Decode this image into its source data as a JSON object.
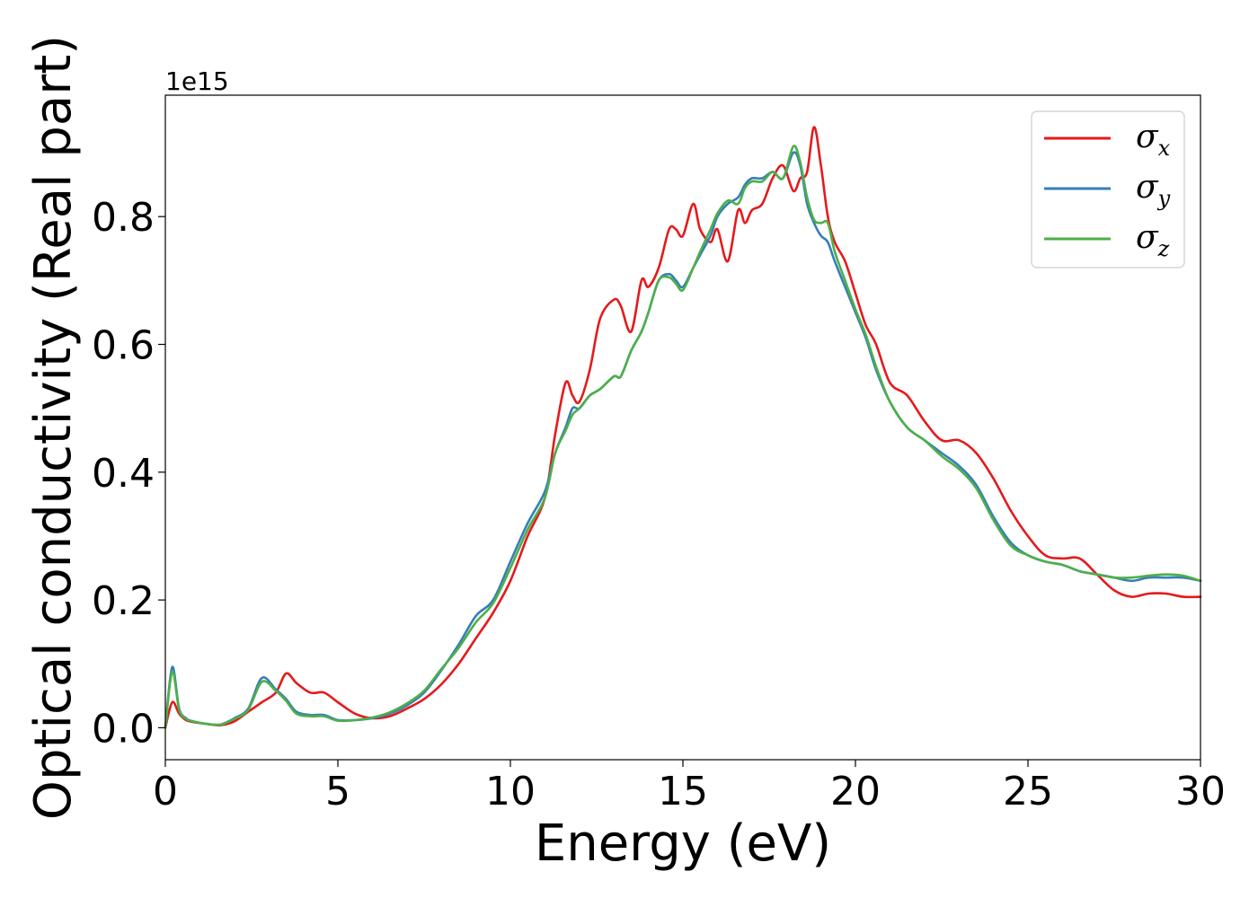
{
  "chart_data": {
    "type": "line",
    "xlabel": "Energy (eV)",
    "ylabel": "Optical conductivity (Real part)",
    "y_offset_label": "1e15",
    "xlim": [
      0,
      30
    ],
    "ylim": [
      -0.05,
      0.99
    ],
    "grid": false,
    "legend_position": "top-right",
    "x_ticks": [
      0,
      5,
      10,
      15,
      20,
      25,
      30
    ],
    "x_tick_labels": [
      "0",
      "5",
      "10",
      "15",
      "20",
      "25",
      "30"
    ],
    "y_ticks": [
      0.0,
      0.2,
      0.4,
      0.6,
      0.8
    ],
    "y_tick_labels": [
      "0.0",
      "0.2",
      "0.4",
      "0.6",
      "0.8"
    ],
    "series": [
      {
        "name": "σx",
        "symbol": "σ",
        "subscript": "x",
        "color": "#e41a1c",
        "x": [
          0,
          0.2,
          0.4,
          0.6,
          0.8,
          1.2,
          1.6,
          2.0,
          2.4,
          2.8,
          3.2,
          3.5,
          3.8,
          4.2,
          4.6,
          5.0,
          5.5,
          6.0,
          6.5,
          7.0,
          7.5,
          8.0,
          8.5,
          9.0,
          9.5,
          10.0,
          10.5,
          11.0,
          11.3,
          11.6,
          11.8,
          12.0,
          12.3,
          12.6,
          13.0,
          13.2,
          13.5,
          13.8,
          14.0,
          14.3,
          14.6,
          14.8,
          15.0,
          15.3,
          15.5,
          15.8,
          16.0,
          16.3,
          16.6,
          16.8,
          17.0,
          17.3,
          17.6,
          17.9,
          18.2,
          18.4,
          18.6,
          18.8,
          19.0,
          19.2,
          19.4,
          19.7,
          20.0,
          20.3,
          20.6,
          21.0,
          21.5,
          22.0,
          22.5,
          23.0,
          23.5,
          24.0,
          24.5,
          25.0,
          25.5,
          26.0,
          26.5,
          27.0,
          27.5,
          28.0,
          28.5,
          29.0,
          29.5,
          30.0
        ],
        "values": [
          0.0,
          0.04,
          0.022,
          0.012,
          0.009,
          0.006,
          0.004,
          0.01,
          0.025,
          0.04,
          0.055,
          0.085,
          0.07,
          0.055,
          0.055,
          0.04,
          0.022,
          0.015,
          0.018,
          0.03,
          0.045,
          0.068,
          0.1,
          0.14,
          0.18,
          0.23,
          0.3,
          0.36,
          0.46,
          0.54,
          0.52,
          0.51,
          0.56,
          0.64,
          0.67,
          0.66,
          0.62,
          0.7,
          0.69,
          0.72,
          0.78,
          0.78,
          0.77,
          0.82,
          0.78,
          0.76,
          0.78,
          0.73,
          0.81,
          0.79,
          0.81,
          0.82,
          0.86,
          0.88,
          0.84,
          0.86,
          0.87,
          0.94,
          0.88,
          0.8,
          0.76,
          0.73,
          0.68,
          0.63,
          0.6,
          0.54,
          0.52,
          0.48,
          0.45,
          0.45,
          0.43,
          0.39,
          0.34,
          0.3,
          0.27,
          0.265,
          0.265,
          0.24,
          0.215,
          0.205,
          0.21,
          0.21,
          0.205,
          0.205
        ]
      },
      {
        "name": "σy",
        "symbol": "σ",
        "subscript": "y",
        "color": "#377eb8",
        "x": [
          0,
          0.2,
          0.4,
          0.6,
          0.8,
          1.2,
          1.6,
          2.0,
          2.4,
          2.8,
          3.2,
          3.5,
          3.8,
          4.2,
          4.6,
          5.0,
          5.5,
          6.0,
          6.5,
          7.0,
          7.5,
          8.0,
          8.5,
          9.0,
          9.5,
          10.0,
          10.5,
          11.0,
          11.3,
          11.6,
          11.8,
          12.0,
          12.3,
          12.6,
          13.0,
          13.2,
          13.5,
          13.8,
          14.0,
          14.3,
          14.6,
          14.8,
          15.0,
          15.3,
          15.5,
          15.8,
          16.0,
          16.3,
          16.6,
          16.8,
          17.0,
          17.3,
          17.6,
          17.9,
          18.2,
          18.4,
          18.6,
          18.8,
          19.0,
          19.2,
          19.4,
          19.7,
          20.0,
          20.3,
          20.6,
          21.0,
          21.5,
          22.0,
          22.5,
          23.0,
          23.5,
          24.0,
          24.5,
          25.0,
          25.5,
          26.0,
          26.5,
          27.0,
          27.5,
          28.0,
          28.5,
          29.0,
          29.5,
          30.0
        ],
        "values": [
          0.0,
          0.095,
          0.03,
          0.015,
          0.01,
          0.006,
          0.005,
          0.015,
          0.03,
          0.078,
          0.06,
          0.045,
          0.025,
          0.02,
          0.02,
          0.012,
          0.012,
          0.015,
          0.022,
          0.035,
          0.055,
          0.09,
          0.13,
          0.175,
          0.2,
          0.26,
          0.32,
          0.37,
          0.43,
          0.47,
          0.5,
          0.5,
          0.52,
          0.53,
          0.55,
          0.55,
          0.59,
          0.62,
          0.65,
          0.7,
          0.71,
          0.7,
          0.69,
          0.72,
          0.74,
          0.77,
          0.8,
          0.82,
          0.83,
          0.85,
          0.86,
          0.86,
          0.87,
          0.86,
          0.9,
          0.88,
          0.82,
          0.79,
          0.77,
          0.76,
          0.73,
          0.69,
          0.65,
          0.61,
          0.56,
          0.51,
          0.47,
          0.45,
          0.43,
          0.41,
          0.38,
          0.33,
          0.29,
          0.27,
          0.26,
          0.255,
          0.245,
          0.24,
          0.235,
          0.23,
          0.235,
          0.235,
          0.235,
          0.23
        ]
      },
      {
        "name": "σz",
        "symbol": "σ",
        "subscript": "z",
        "color": "#4daf4a",
        "x": [
          0,
          0.2,
          0.4,
          0.6,
          0.8,
          1.2,
          1.6,
          2.0,
          2.4,
          2.8,
          3.2,
          3.5,
          3.8,
          4.2,
          4.6,
          5.0,
          5.5,
          6.0,
          6.5,
          7.0,
          7.5,
          8.0,
          8.5,
          9.0,
          9.5,
          10.0,
          10.5,
          11.0,
          11.3,
          11.6,
          11.8,
          12.0,
          12.3,
          12.6,
          13.0,
          13.2,
          13.5,
          13.8,
          14.0,
          14.3,
          14.6,
          14.8,
          15.0,
          15.3,
          15.5,
          15.8,
          16.0,
          16.3,
          16.6,
          16.8,
          17.0,
          17.3,
          17.6,
          17.9,
          18.2,
          18.4,
          18.6,
          18.8,
          19.0,
          19.2,
          19.4,
          19.7,
          20.0,
          20.3,
          20.6,
          21.0,
          21.5,
          22.0,
          22.5,
          23.0,
          23.5,
          24.0,
          24.5,
          25.0,
          25.5,
          26.0,
          26.5,
          27.0,
          27.5,
          28.0,
          28.5,
          29.0,
          29.5,
          30.0
        ],
        "values": [
          0.0,
          0.088,
          0.028,
          0.014,
          0.01,
          0.006,
          0.005,
          0.014,
          0.028,
          0.072,
          0.058,
          0.042,
          0.022,
          0.018,
          0.018,
          0.011,
          0.012,
          0.016,
          0.024,
          0.038,
          0.058,
          0.092,
          0.125,
          0.165,
          0.195,
          0.25,
          0.31,
          0.36,
          0.43,
          0.465,
          0.49,
          0.5,
          0.52,
          0.53,
          0.55,
          0.55,
          0.59,
          0.62,
          0.65,
          0.7,
          0.705,
          0.695,
          0.685,
          0.72,
          0.745,
          0.78,
          0.805,
          0.825,
          0.82,
          0.845,
          0.855,
          0.855,
          0.87,
          0.86,
          0.91,
          0.885,
          0.83,
          0.795,
          0.79,
          0.79,
          0.745,
          0.7,
          0.655,
          0.615,
          0.565,
          0.51,
          0.47,
          0.45,
          0.425,
          0.405,
          0.375,
          0.325,
          0.285,
          0.27,
          0.26,
          0.255,
          0.245,
          0.24,
          0.235,
          0.235,
          0.238,
          0.24,
          0.238,
          0.23
        ]
      }
    ]
  }
}
